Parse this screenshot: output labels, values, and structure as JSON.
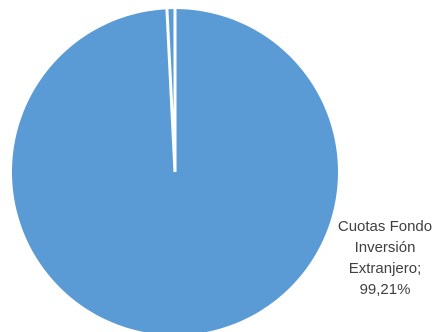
{
  "chart_data": {
    "type": "pie",
    "title": "",
    "slices": [
      {
        "name": "Cuotas Fondo Inversión Extranjero",
        "percent": 99.21,
        "label_lines": [
          "Cuotas Fondo",
          "Inversión",
          "Extranjero;",
          "99,21%"
        ],
        "color": "#5b9bd5"
      },
      {
        "name": "",
        "percent": 0.79,
        "label_lines": [],
        "color": "#5b9bd5"
      }
    ],
    "separator_color": "#ffffff",
    "legend": "none",
    "start_angle_deg": 0
  }
}
